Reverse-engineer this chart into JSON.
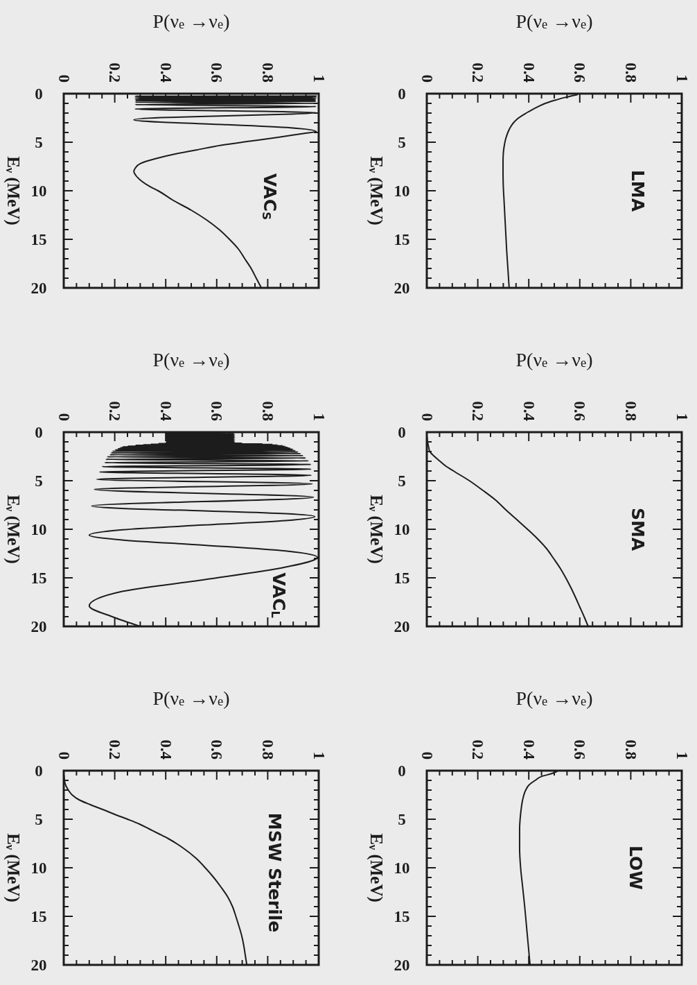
{
  "chart_data": [
    {
      "type": "line",
      "title": "VAC$_{S}$",
      "xlabel": "P(ν$_{e}$ →ν$_{e}$)",
      "ylabel": "E$_{ν}$ (MeV)",
      "color": "#1c1c1c",
      "xlim": [
        0,
        1
      ],
      "ylim": [
        20,
        0
      ],
      "xticks": [
        0,
        {
          "value": 0.05,
          "label": null
        },
        {
          "value": 0.1,
          "label": null
        },
        {
          "value": 0.15,
          "label": null
        },
        0.2,
        {
          "value": 0.25,
          "label": null
        },
        {
          "value": 0.3,
          "label": null
        },
        {
          "value": 0.35,
          "label": null
        },
        0.4,
        {
          "value": 0.45,
          "label": null
        },
        {
          "value": 0.5,
          "label": null
        },
        {
          "value": 0.55,
          "label": null
        },
        0.6,
        {
          "value": 0.65,
          "label": null
        },
        {
          "value": 0.7,
          "label": null
        },
        {
          "value": 0.75,
          "label": null
        },
        0.8,
        {
          "value": 0.85,
          "label": null
        },
        {
          "value": 0.9,
          "label": null
        },
        {
          "value": 0.95,
          "label": null
        },
        1
      ],
      "yticks": [
        0,
        {
          "value": 1,
          "label": null
        },
        {
          "value": 2,
          "label": null
        },
        {
          "value": 3,
          "label": null
        },
        {
          "value": 4,
          "label": null
        },
        5,
        {
          "value": 6,
          "label": null
        },
        {
          "value": 7,
          "label": null
        },
        {
          "value": 8,
          "label": null
        },
        {
          "value": 9,
          "label": null
        },
        10,
        {
          "value": 11,
          "label": null
        },
        {
          "value": 12,
          "label": null
        },
        {
          "value": 13,
          "label": null
        },
        {
          "value": 14,
          "label": null
        },
        15,
        {
          "value": 16,
          "label": null
        },
        {
          "value": 17,
          "label": null
        },
        {
          "value": 18,
          "label": null
        },
        {
          "value": 19,
          "label": null
        },
        20
      ],
      "x": [
        0.99,
        0.28,
        0.99,
        0.28,
        0.99,
        0.28,
        0.99,
        0.28,
        0.99,
        0.28,
        0.99,
        0.28,
        0.99,
        0.28,
        0.99,
        0.28,
        0.99,
        0.28,
        0.99,
        0.28,
        0.99,
        0.28,
        0.99,
        0.28,
        0.99,
        0.28,
        0.99,
        0.89,
        0.64,
        0.38,
        0.275,
        0.38,
        0.64,
        0.89,
        0.99,
        0.94,
        0.84,
        0.73,
        0.62,
        0.52,
        0.44,
        0.36,
        0.3,
        0.28,
        0.275,
        0.285,
        0.305,
        0.34,
        0.37,
        0.43,
        0.5,
        0.56,
        0.61,
        0.65,
        0.685,
        0.71,
        0.735,
        0.755,
        0.775
      ],
      "values": [
        0.25,
        0.27,
        0.28,
        0.29,
        0.3,
        0.32,
        0.33,
        0.34,
        0.36,
        0.38,
        0.4,
        0.42,
        0.44,
        0.46,
        0.49,
        0.53,
        0.56,
        0.61,
        0.66,
        0.72,
        0.79,
        0.88,
        0.99,
        1.13,
        1.32,
        1.58,
        1.97,
        2.11,
        2.28,
        2.47,
        2.7,
        2.93,
        3.19,
        3.51,
        3.9,
        4.1,
        4.5,
        4.9,
        5.3,
        5.8,
        6.2,
        6.7,
        7.2,
        7.7,
        8,
        8.5,
        9,
        9.6,
        10,
        11,
        12,
        13,
        14,
        15,
        16,
        17,
        18,
        19,
        20
      ]
    },
    {
      "type": "line",
      "title": "LMA",
      "xlabel": "P(ν$_{e}$ →ν$_{e}$)",
      "ylabel": "E$_{ν}$ (MeV)",
      "color": "#1c1c1c",
      "xlim": [
        0,
        1
      ],
      "ylim": [
        20,
        0
      ],
      "xticks": [
        0,
        {
          "value": 0.05,
          "label": null
        },
        {
          "value": 0.1,
          "label": null
        },
        {
          "value": 0.15,
          "label": null
        },
        0.2,
        {
          "value": 0.25,
          "label": null
        },
        {
          "value": 0.3,
          "label": null
        },
        {
          "value": 0.35,
          "label": null
        },
        0.4,
        {
          "value": 0.45,
          "label": null
        },
        {
          "value": 0.5,
          "label": null
        },
        {
          "value": 0.55,
          "label": null
        },
        0.6,
        {
          "value": 0.65,
          "label": null
        },
        {
          "value": 0.7,
          "label": null
        },
        {
          "value": 0.75,
          "label": null
        },
        0.8,
        {
          "value": 0.85,
          "label": null
        },
        {
          "value": 0.9,
          "label": null
        },
        {
          "value": 0.95,
          "label": null
        },
        1
      ],
      "yticks": [
        0,
        {
          "value": 1,
          "label": null
        },
        {
          "value": 2,
          "label": null
        },
        {
          "value": 3,
          "label": null
        },
        {
          "value": 4,
          "label": null
        },
        5,
        {
          "value": 6,
          "label": null
        },
        {
          "value": 7,
          "label": null
        },
        {
          "value": 8,
          "label": null
        },
        {
          "value": 9,
          "label": null
        },
        10,
        {
          "value": 11,
          "label": null
        },
        {
          "value": 12,
          "label": null
        },
        {
          "value": 13,
          "label": null
        },
        {
          "value": 14,
          "label": null
        },
        15,
        {
          "value": 16,
          "label": null
        },
        {
          "value": 17,
          "label": null
        },
        {
          "value": 18,
          "label": null
        },
        {
          "value": 19,
          "label": null
        },
        20
      ],
      "x": [
        0.59,
        0.54,
        0.5,
        0.465,
        0.44,
        0.41,
        0.39,
        0.355,
        0.34,
        0.327,
        0.318,
        0.309,
        0.303,
        0.3,
        0.299,
        0.299,
        0.3,
        0.303,
        0.306,
        0.309,
        0.313,
        0.318,
        0.323
      ],
      "values": [
        0.1,
        0.4,
        0.7,
        1,
        1.3,
        1.7,
        2,
        2.6,
        3,
        3.5,
        4,
        4.7,
        5.5,
        6.2,
        7,
        8,
        9.5,
        11,
        12.5,
        14,
        16,
        18,
        20
      ]
    },
    {
      "type": "line",
      "title": "VAC$_{L}$",
      "xlabel": "P(ν$_{e}$ →ν$_{e}$)",
      "ylabel": "E$_{ν}$ (MeV)",
      "color": "#1c1c1c",
      "xlim": [
        0,
        1
      ],
      "ylim": [
        20,
        0
      ],
      "xticks": [
        0,
        {
          "value": 0.05,
          "label": null
        },
        {
          "value": 0.1,
          "label": null
        },
        {
          "value": 0.15,
          "label": null
        },
        0.2,
        {
          "value": 0.25,
          "label": null
        },
        {
          "value": 0.3,
          "label": null
        },
        {
          "value": 0.35,
          "label": null
        },
        0.4,
        {
          "value": 0.45,
          "label": null
        },
        {
          "value": 0.5,
          "label": null
        },
        {
          "value": 0.55,
          "label": null
        },
        0.6,
        {
          "value": 0.65,
          "label": null
        },
        {
          "value": 0.7,
          "label": null
        },
        {
          "value": 0.75,
          "label": null
        },
        0.8,
        {
          "value": 0.85,
          "label": null
        },
        {
          "value": 0.9,
          "label": null
        },
        {
          "value": 0.95,
          "label": null
        },
        1
      ],
      "yticks": [
        0,
        {
          "value": 1,
          "label": null
        },
        {
          "value": 2,
          "label": null
        },
        {
          "value": 3,
          "label": null
        },
        {
          "value": 4,
          "label": null
        },
        5,
        {
          "value": 6,
          "label": null
        },
        {
          "value": 7,
          "label": null
        },
        {
          "value": 8,
          "label": null
        },
        {
          "value": 9,
          "label": null
        },
        10,
        {
          "value": 11,
          "label": null
        },
        {
          "value": 12,
          "label": null
        },
        {
          "value": 13,
          "label": null
        },
        {
          "value": 14,
          "label": null
        },
        15,
        {
          "value": 16,
          "label": null
        },
        {
          "value": 17,
          "label": null
        },
        {
          "value": 18,
          "label": null
        },
        {
          "value": 19,
          "label": null
        },
        20
      ],
      "x": [
        0.4,
        0.67,
        0.4,
        0.67,
        0.4,
        0.67,
        0.4,
        0.67,
        0.4,
        0.67,
        0.4,
        0.67,
        0.4,
        0.67,
        0.4,
        0.67,
        0.4,
        0.67,
        0.4,
        0.67,
        0.4,
        0.7,
        0.37,
        0.78,
        0.34,
        0.82,
        0.31,
        0.84,
        0.28,
        0.86,
        0.25,
        0.87,
        0.23,
        0.88,
        0.22,
        0.89,
        0.21,
        0.9,
        0.2,
        0.91,
        0.19,
        0.92,
        0.185,
        0.93,
        0.18,
        0.94,
        0.17,
        0.95,
        0.165,
        0.96,
        0.16,
        0.97,
        0.15,
        0.97,
        0.14,
        0.97,
        0.13,
        0.975,
        0.12,
        0.98,
        0.11,
        0.23,
        0.55,
        0.87,
        0.985,
        0.87,
        0.55,
        0.23,
        0.1,
        0.23,
        0.55,
        0.87,
        0.995,
        0.87,
        0.55,
        0.23,
        0.1,
        0.19,
        0.3
      ],
      "values": [
        0.1,
        0.15,
        0.2,
        0.25,
        0.3,
        0.35,
        0.4,
        0.45,
        0.5,
        0.55,
        0.6,
        0.65,
        0.7,
        0.75,
        0.8,
        0.85,
        0.9,
        0.95,
        1,
        1.05,
        1.1,
        1.14,
        1.18,
        1.21,
        1.24,
        1.27,
        1.3,
        1.33,
        1.36,
        1.4,
        1.44,
        1.48,
        1.52,
        1.57,
        1.61,
        1.66,
        1.72,
        1.77,
        1.84,
        1.9,
        1.97,
        2.05,
        2.13,
        2.22,
        2.32,
        2.42,
        2.54,
        2.66,
        2.8,
        2.96,
        3.13,
        3.33,
        3.55,
        3.81,
        4.1,
        4.44,
        4.85,
        5.33,
        5.9,
        6.7,
        7.6,
        7.85,
        8.11,
        8.4,
        8.7,
        9.11,
        9.56,
        10.05,
        10.6,
        11.1,
        11.64,
        12.24,
        12.9,
        13.9,
        15.2,
        16.4,
        17.9,
        19,
        20
      ]
    },
    {
      "type": "line",
      "title": "SMA",
      "xlabel": "P(ν$_{e}$ →ν$_{e}$)",
      "ylabel": "E$_{ν}$ (MeV)",
      "color": "#1c1c1c",
      "xlim": [
        0,
        1
      ],
      "ylim": [
        20,
        0
      ],
      "xticks": [
        0,
        {
          "value": 0.05,
          "label": null
        },
        {
          "value": 0.1,
          "label": null
        },
        {
          "value": 0.15,
          "label": null
        },
        0.2,
        {
          "value": 0.25,
          "label": null
        },
        {
          "value": 0.3,
          "label": null
        },
        {
          "value": 0.35,
          "label": null
        },
        0.4,
        {
          "value": 0.45,
          "label": null
        },
        {
          "value": 0.5,
          "label": null
        },
        {
          "value": 0.55,
          "label": null
        },
        0.6,
        {
          "value": 0.65,
          "label": null
        },
        {
          "value": 0.7,
          "label": null
        },
        {
          "value": 0.75,
          "label": null
        },
        0.8,
        {
          "value": 0.85,
          "label": null
        },
        {
          "value": 0.9,
          "label": null
        },
        {
          "value": 0.95,
          "label": null
        },
        1
      ],
      "yticks": [
        0,
        {
          "value": 1,
          "label": null
        },
        {
          "value": 2,
          "label": null
        },
        {
          "value": 3,
          "label": null
        },
        {
          "value": 4,
          "label": null
        },
        5,
        {
          "value": 6,
          "label": null
        },
        {
          "value": 7,
          "label": null
        },
        {
          "value": 8,
          "label": null
        },
        {
          "value": 9,
          "label": null
        },
        10,
        {
          "value": 11,
          "label": null
        },
        {
          "value": 12,
          "label": null
        },
        {
          "value": 13,
          "label": null
        },
        {
          "value": 14,
          "label": null
        },
        15,
        {
          "value": 16,
          "label": null
        },
        {
          "value": 17,
          "label": null
        },
        {
          "value": 18,
          "label": null
        },
        {
          "value": 19,
          "label": null
        },
        20
      ],
      "x": [
        0.001,
        0.003,
        0.007,
        0.012,
        0.03,
        0.052,
        0.075,
        0.105,
        0.167,
        0.22,
        0.27,
        0.31,
        0.353,
        0.395,
        0.435,
        0.47,
        0.497,
        0.523,
        0.545,
        0.565,
        0.583,
        0.6,
        0.617,
        0.633
      ],
      "values": [
        0.5,
        1,
        1.5,
        2,
        2.5,
        3,
        3.5,
        4,
        5,
        6,
        7,
        8,
        9,
        10,
        11,
        12,
        13,
        14,
        15,
        16,
        17,
        18,
        19,
        20
      ]
    },
    {
      "type": "line",
      "title": "MSW Sterile",
      "xlabel": "P(ν$_{e}$ →ν$_{e}$)",
      "ylabel": "E$_{ν}$ (MeV)",
      "color": "#1c1c1c",
      "xlim": [
        0,
        1
      ],
      "ylim": [
        20,
        0
      ],
      "xticks": [
        0,
        {
          "value": 0.05,
          "label": null
        },
        {
          "value": 0.1,
          "label": null
        },
        {
          "value": 0.15,
          "label": null
        },
        0.2,
        {
          "value": 0.25,
          "label": null
        },
        {
          "value": 0.3,
          "label": null
        },
        {
          "value": 0.35,
          "label": null
        },
        0.4,
        {
          "value": 0.45,
          "label": null
        },
        {
          "value": 0.5,
          "label": null
        },
        {
          "value": 0.55,
          "label": null
        },
        0.6,
        {
          "value": 0.65,
          "label": null
        },
        {
          "value": 0.7,
          "label": null
        },
        {
          "value": 0.75,
          "label": null
        },
        0.8,
        {
          "value": 0.85,
          "label": null
        },
        {
          "value": 0.9,
          "label": null
        },
        {
          "value": 0.95,
          "label": null
        },
        1
      ],
      "yticks": [
        0,
        {
          "value": 1,
          "label": null
        },
        {
          "value": 2,
          "label": null
        },
        {
          "value": 3,
          "label": null
        },
        {
          "value": 4,
          "label": null
        },
        5,
        {
          "value": 6,
          "label": null
        },
        {
          "value": 7,
          "label": null
        },
        {
          "value": 8,
          "label": null
        },
        {
          "value": 9,
          "label": null
        },
        10,
        {
          "value": 11,
          "label": null
        },
        {
          "value": 12,
          "label": null
        },
        {
          "value": 13,
          "label": null
        },
        {
          "value": 14,
          "label": null
        },
        15,
        {
          "value": 16,
          "label": null
        },
        {
          "value": 17,
          "label": null
        },
        {
          "value": 18,
          "label": null
        },
        {
          "value": 19,
          "label": null
        },
        20
      ],
      "x": [
        0.001,
        0.005,
        0.018,
        0.033,
        0.06,
        0.104,
        0.153,
        0.2,
        0.25,
        0.297,
        0.335,
        0.373,
        0.41,
        0.47,
        0.518,
        0.555,
        0.588,
        0.617,
        0.643,
        0.662,
        0.675,
        0.687,
        0.698,
        0.706,
        0.712,
        0.718
      ],
      "values": [
        0.5,
        1.3,
        2,
        2.5,
        3,
        3.5,
        4,
        4.5,
        5,
        5.5,
        6,
        6.5,
        7,
        8,
        9,
        10,
        11,
        12,
        13,
        14,
        15,
        16,
        17,
        18,
        19,
        20
      ]
    },
    {
      "type": "line",
      "title": "LOW",
      "xlabel": "P(ν$_{e}$ →ν$_{e}$)",
      "ylabel": "E$_{ν}$ (MeV)",
      "color": "#1c1c1c",
      "xlim": [
        0,
        1
      ],
      "ylim": [
        20,
        0
      ],
      "xticks": [
        0,
        {
          "value": 0.05,
          "label": null
        },
        {
          "value": 0.1,
          "label": null
        },
        {
          "value": 0.15,
          "label": null
        },
        0.2,
        {
          "value": 0.25,
          "label": null
        },
        {
          "value": 0.3,
          "label": null
        },
        {
          "value": 0.35,
          "label": null
        },
        0.4,
        {
          "value": 0.45,
          "label": null
        },
        {
          "value": 0.5,
          "label": null
        },
        {
          "value": 0.55,
          "label": null
        },
        0.6,
        {
          "value": 0.65,
          "label": null
        },
        {
          "value": 0.7,
          "label": null
        },
        {
          "value": 0.75,
          "label": null
        },
        0.8,
        {
          "value": 0.85,
          "label": null
        },
        {
          "value": 0.9,
          "label": null
        },
        {
          "value": 0.95,
          "label": null
        },
        1
      ],
      "yticks": [
        0,
        {
          "value": 1,
          "label": null
        },
        {
          "value": 2,
          "label": null
        },
        {
          "value": 3,
          "label": null
        },
        {
          "value": 4,
          "label": null
        },
        5,
        {
          "value": 6,
          "label": null
        },
        {
          "value": 7,
          "label": null
        },
        {
          "value": 8,
          "label": null
        },
        {
          "value": 9,
          "label": null
        },
        10,
        {
          "value": 11,
          "label": null
        },
        {
          "value": 12,
          "label": null
        },
        {
          "value": 13,
          "label": null
        },
        {
          "value": 14,
          "label": null
        },
        15,
        {
          "value": 16,
          "label": null
        },
        {
          "value": 17,
          "label": null
        },
        {
          "value": 18,
          "label": null
        },
        {
          "value": 19,
          "label": null
        },
        20
      ],
      "x": [
        0.51,
        0.49,
        0.45,
        0.425,
        0.4,
        0.388,
        0.376,
        0.37,
        0.366,
        0.364,
        0.364,
        0.368,
        0.376,
        0.384,
        0.391,
        0.398,
        0.405
      ],
      "values": [
        0.1,
        0.3,
        0.6,
        1,
        1.5,
        2,
        3,
        4,
        5,
        6,
        8,
        10,
        12,
        14,
        16,
        18,
        20
      ]
    }
  ]
}
